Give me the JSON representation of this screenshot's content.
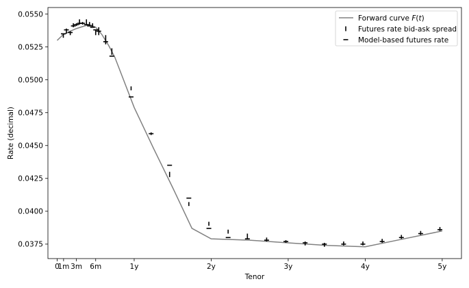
{
  "chart_data": {
    "type": "line",
    "title": "",
    "xlabel": "Tenor",
    "ylabel": "Rate (decimal)",
    "xlim": [
      -0.12,
      5.25
    ],
    "ylim": [
      0.0364,
      0.0555
    ],
    "grid": false,
    "legend_position": "top-right",
    "x_ticks": [
      {
        "value": 0.0,
        "label": "0"
      },
      {
        "value": 0.0833,
        "label": "1m"
      },
      {
        "value": 0.25,
        "label": "3m"
      },
      {
        "value": 0.5,
        "label": "6m"
      },
      {
        "value": 1.0,
        "label": "1y"
      },
      {
        "value": 2.0,
        "label": "2y"
      },
      {
        "value": 3.0,
        "label": "3y"
      },
      {
        "value": 4.0,
        "label": "4y"
      },
      {
        "value": 5.0,
        "label": "5y"
      }
    ],
    "y_ticks": [
      {
        "value": 0.0375,
        "label": "0.0375"
      },
      {
        "value": 0.04,
        "label": "0.0400"
      },
      {
        "value": 0.0425,
        "label": "0.0425"
      },
      {
        "value": 0.045,
        "label": "0.0450"
      },
      {
        "value": 0.0475,
        "label": "0.0475"
      },
      {
        "value": 0.05,
        "label": "0.0500"
      },
      {
        "value": 0.0525,
        "label": "0.0525"
      },
      {
        "value": 0.055,
        "label": "0.0550"
      }
    ],
    "legend": [
      {
        "label": "Forward curve F(t)",
        "label_base": "Forward curve ",
        "label_math": "F",
        "label_paren": "(",
        "label_t": "t",
        "label_close": ")",
        "marker": "line",
        "color": "#808080"
      },
      {
        "label": "Futures rate bid-ask spread",
        "marker": "vline",
        "color": "#000000"
      },
      {
        "label": "Model-based futures rate",
        "marker": "hline",
        "color": "#000000"
      }
    ],
    "series": [
      {
        "name": "Forward curve F(t)",
        "kind": "line",
        "color": "#808080",
        "x": [
          0.0,
          0.08,
          0.17,
          0.25,
          0.33,
          0.42,
          0.5,
          0.58,
          0.67,
          0.75,
          1.0,
          1.25,
          1.5,
          1.75,
          2.0,
          2.5,
          3.0,
          3.5,
          4.0,
          4.5,
          5.0
        ],
        "y": [
          0.053,
          0.05345,
          0.0537,
          0.0539,
          0.05405,
          0.0542,
          0.054,
          0.05345,
          0.0526,
          0.0517,
          0.0479,
          0.0448,
          0.0418,
          0.0387,
          0.0379,
          0.0378,
          0.0376,
          0.0374,
          0.0373,
          0.0379,
          0.0385
        ]
      },
      {
        "name": "Futures rate bid-ask spread",
        "kind": "vsegments",
        "color": "#000000",
        "x": [
          0.08,
          0.12,
          0.17,
          0.21,
          0.25,
          0.29,
          0.33,
          0.38,
          0.42,
          0.46,
          0.5,
          0.54,
          0.63,
          0.71,
          0.96,
          1.22,
          1.46,
          1.71,
          1.97,
          2.22,
          2.47,
          2.72,
          2.97,
          3.22,
          3.47,
          3.72,
          3.97,
          4.22,
          4.47,
          4.72,
          4.97
        ],
        "low": [
          0.0532,
          0.0535,
          0.0534,
          0.054,
          0.0541,
          0.0542,
          0.0542,
          0.0542,
          0.0541,
          0.054,
          0.0534,
          0.0534,
          0.0527,
          0.0519,
          0.0492,
          0.0458,
          0.0426,
          0.0404,
          0.0389,
          0.0383,
          0.0379,
          0.0377,
          0.0376,
          0.0374,
          0.0373,
          0.0374,
          0.0374,
          0.0376,
          0.0379,
          0.0382,
          0.0385
        ],
        "high": [
          0.0535,
          0.0539,
          0.0537,
          0.0543,
          0.0543,
          0.0546,
          0.0544,
          0.0546,
          0.0544,
          0.0543,
          0.0538,
          0.054,
          0.0534,
          0.0524,
          0.0495,
          0.046,
          0.043,
          0.0407,
          0.0392,
          0.0386,
          0.0383,
          0.038,
          0.0378,
          0.0377,
          0.0376,
          0.0377,
          0.0377,
          0.0379,
          0.0382,
          0.0385,
          0.0388
        ]
      },
      {
        "name": "Model-based futures rate",
        "kind": "hmarks",
        "color": "#000000",
        "x": [
          0.08,
          0.12,
          0.17,
          0.21,
          0.25,
          0.29,
          0.33,
          0.38,
          0.42,
          0.46,
          0.5,
          0.54,
          0.63,
          0.71,
          0.96,
          1.22,
          1.46,
          1.71,
          1.97,
          2.22,
          2.47,
          2.72,
          2.97,
          3.22,
          3.47,
          3.72,
          3.97,
          4.22,
          4.47,
          4.72,
          4.97
        ],
        "y": [
          0.0535,
          0.0538,
          0.0536,
          0.0541,
          0.0542,
          0.0543,
          0.0543,
          0.0542,
          0.0541,
          0.054,
          0.0538,
          0.0537,
          0.0529,
          0.0518,
          0.0487,
          0.0459,
          0.0435,
          0.041,
          0.0387,
          0.038,
          0.0379,
          0.0378,
          0.0377,
          0.0376,
          0.0375,
          0.0375,
          0.0375,
          0.0377,
          0.038,
          0.0383,
          0.0386
        ]
      }
    ]
  }
}
